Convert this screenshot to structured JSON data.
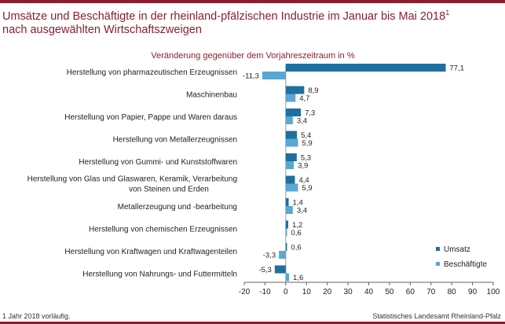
{
  "header": {
    "title_line1": "Umsätze und Beschäftigte in der rheinland-pfälzischen Industrie im Januar bis Mai 2018",
    "title_sup": "1",
    "title_line2": "nach ausgewählten Wirtschaftszweigen"
  },
  "footer": {
    "note": "1 Jahr 2018 vorläufig.",
    "source": "Statistisches Landesamt Rheinland-Pfalz"
  },
  "colors": {
    "accent": "#8b1e2e",
    "umsatz": "#1f6f9f",
    "beschaeftigte": "#5aa7d2"
  },
  "chart_data": {
    "type": "bar",
    "orientation": "horizontal",
    "subtitle": "Veränderung gegenüber dem Vorjahreszeitraum in %",
    "categories": [
      [
        "Herstellung von pharmazeutischen Erzeugnissen"
      ],
      [
        "Maschinenbau"
      ],
      [
        "Herstellung von Papier, Pappe und Waren daraus"
      ],
      [
        "Herstellung von Metallerzeugnissen"
      ],
      [
        "Herstellung von Gummi- und Kunststoffwaren"
      ],
      [
        "Herstellung von Glas und Glaswaren, Keramik, Verarbeitung",
        "von Steinen und Erden"
      ],
      [
        "Metallerzeugung und -bearbeitung"
      ],
      [
        "Herstellung von chemischen Erzeugnissen"
      ],
      [
        "Herstellung von Kraftwagen und Kraftwagenteilen"
      ],
      [
        "Herstellung von Nahrungs- und Futtermitteln"
      ]
    ],
    "series": [
      {
        "name": "Umsatz",
        "values": [
          77.1,
          8.9,
          7.3,
          5.4,
          5.3,
          4.4,
          1.4,
          1.2,
          0.6,
          -5.3
        ],
        "labels": [
          "77,1",
          "8,9",
          "7,3",
          "5,4",
          "5,3",
          "4,4",
          "1,4",
          "1,2",
          "0,6",
          "-5,3"
        ]
      },
      {
        "name": "Beschäftigte",
        "values": [
          -11.3,
          4.7,
          3.4,
          5.9,
          3.9,
          5.9,
          3.4,
          0.6,
          -3.3,
          1.6
        ],
        "labels": [
          "-11,3",
          "4,7",
          "3,4",
          "5,9",
          "3,9",
          "5,9",
          "3,4",
          "0,6",
          "-3,3",
          "1,6"
        ]
      }
    ],
    "xlim": [
      -20,
      100
    ],
    "xticks": [
      -20,
      -10,
      0,
      10,
      20,
      30,
      40,
      50,
      60,
      70,
      80,
      90,
      100
    ],
    "legend_position": "bottom-right",
    "grid": false
  }
}
